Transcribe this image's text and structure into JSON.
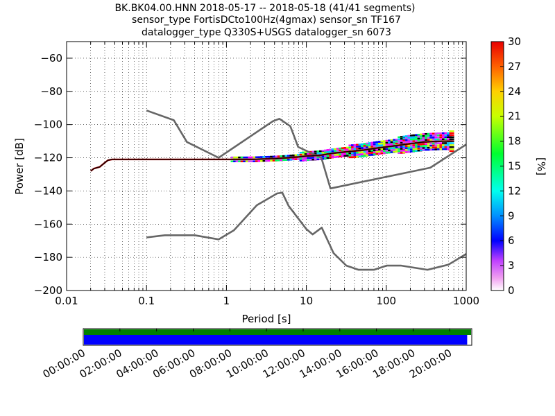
{
  "chart_data": {
    "type": "heatmap",
    "title_lines": [
      "BK.BK04.00.HNN   2018-05-17 -- 2018-05-18  (41/41 segments)",
      "sensor_type FortisDCto100Hz(4gmax) sensor_sn TF167",
      "datalogger_type Q330S+USGS datalogger_sn 6073"
    ],
    "xlabel": "Period [s]",
    "ylabel": "Power [dB]",
    "x_scale": "log",
    "xlim": [
      0.01,
      1000
    ],
    "ylim": [
      -200,
      -50
    ],
    "x_ticks": [
      0.01,
      0.1,
      1,
      10,
      100,
      1000
    ],
    "x_tick_labels": [
      "0.01",
      "0.1",
      "1",
      "10",
      "100",
      "1000"
    ],
    "y_ticks": [
      -200,
      -180,
      -160,
      -140,
      -120,
      -100,
      -80,
      -60
    ],
    "y_tick_labels": [
      "−200",
      "−180",
      "−160",
      "−140",
      "−120",
      "−100",
      "−80",
      "−60"
    ],
    "grid": true,
    "noise_model_high": {
      "x": [
        0.1,
        0.22,
        0.32,
        0.8,
        3.8,
        4.6,
        6.3,
        7.9,
        15.4,
        20,
        354.8,
        1000
      ],
      "y": [
        -91.5,
        -97.4,
        -110.5,
        -120,
        -98,
        -96.5,
        -101,
        -113.5,
        -120,
        -138.5,
        -126,
        -112
      ]
    },
    "noise_model_low": {
      "x": [
        0.1,
        0.17,
        0.4,
        0.8,
        1.24,
        2.4,
        4.3,
        5,
        6,
        10,
        12,
        15.6,
        21.9,
        31.6,
        45,
        70,
        101,
        154,
        328,
        600,
        1000
      ],
      "y": [
        -168,
        -166.7,
        -166.7,
        -169.2,
        -163.7,
        -148.6,
        -141.5,
        -141,
        -149,
        -163,
        -166.2,
        -162.1,
        -177.5,
        -185,
        -187.5,
        -187.5,
        -185,
        -185,
        -187.5,
        -184.4,
        -178
      ]
    },
    "ppsd_mode": {
      "x": [
        0.02,
        0.022,
        0.026,
        0.03,
        0.033,
        0.037,
        0.05,
        0.1,
        1,
        2,
        4,
        6,
        8,
        10,
        15,
        20,
        30,
        50,
        80,
        120,
        200,
        300,
        500,
        700
      ],
      "y": [
        -128,
        -126.5,
        -125.5,
        -123,
        -121.5,
        -121,
        -121,
        -121,
        -121,
        -121,
        -120.5,
        -120,
        -119.5,
        -119,
        -118.5,
        -117.5,
        -116.5,
        -115.5,
        -114,
        -113,
        -111.5,
        -110.5,
        -110,
        -110
      ]
    },
    "colorbar": {
      "label": "[%]",
      "range": [
        0,
        30
      ],
      "ticks": [
        0,
        3,
        6,
        9,
        12,
        15,
        18,
        21,
        24,
        27,
        30
      ],
      "tick_labels": [
        "0",
        "3",
        "6",
        "9",
        "12",
        "15",
        "18",
        "21",
        "24",
        "27",
        "30"
      ]
    },
    "coverage": {
      "time_tick_labels": [
        "00:00:00",
        "02:00:00",
        "04:00:00",
        "06:00:00",
        "08:00:00",
        "10:00:00",
        "12:00:00",
        "14:00:00",
        "16:00:00",
        "18:00:00",
        "20:00:00"
      ],
      "green_fill": 1.0,
      "blue_fill": 0.99,
      "green_color": "#008000",
      "blue_color": "#0000ff"
    },
    "colors": {
      "noise_model": "#666666",
      "mode": "#000000",
      "median": "#8b0000"
    }
  }
}
